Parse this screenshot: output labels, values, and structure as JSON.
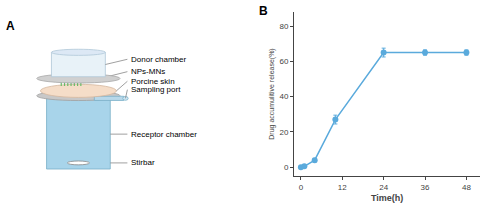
{
  "chart_data": {
    "type": "line",
    "x": [
      0,
      1,
      4,
      10,
      24,
      36,
      48
    ],
    "series": [
      {
        "values": [
          0.0,
          0.5,
          4.0,
          27.0,
          65.0,
          65.0,
          65.0
        ],
        "error": [
          0.3,
          0.4,
          1.0,
          2.5,
          2.5,
          1.5,
          1.5
        ],
        "color": "#5aaadc",
        "marker": "circle"
      }
    ],
    "xlabel": "Time(h)",
    "ylabel": "Drug accumulitive release(%)",
    "xlim": [
      -2,
      52
    ],
    "ylim": [
      -5,
      88
    ],
    "xticks": [
      0,
      12,
      24,
      36,
      48
    ],
    "yticks": [
      0,
      20,
      40,
      60,
      80
    ],
    "grid": false,
    "annotations": [
      "A",
      "Donor chamber",
      "NPs-MNs",
      "Porcine skin",
      "Sampling port",
      "Receptor chamber",
      "Stirbar",
      "B"
    ]
  }
}
